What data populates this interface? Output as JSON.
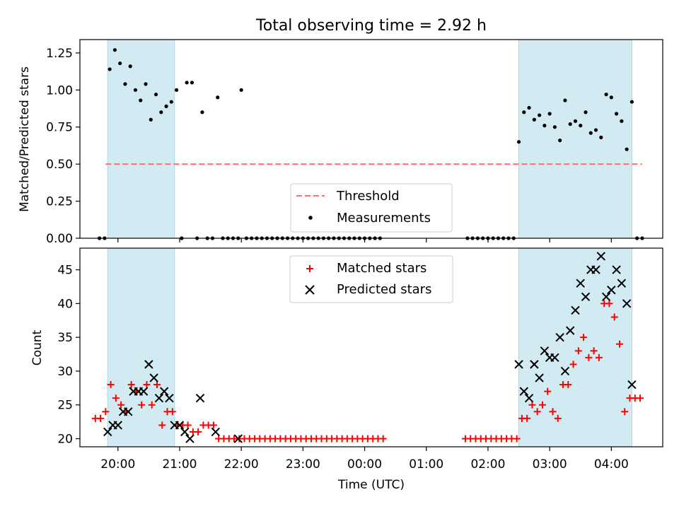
{
  "figure_title": "Total observing time = 2.92 h",
  "colors": {
    "shade": "#add8e6",
    "threshold": "#ff7070",
    "matched": "#ff0000",
    "predicted": "#000000",
    "measurement": "#000000"
  },
  "chart_data": [
    {
      "type": "scatter",
      "title": "",
      "xlabel": "",
      "ylabel": "Matched/Predicted stars",
      "xlim": [
        "19:23",
        "04:50"
      ],
      "ylim": [
        0,
        1.34
      ],
      "yticks": [
        "0.00",
        "0.25",
        "0.50",
        "0.75",
        "1.00",
        "1.25"
      ],
      "grid": false,
      "legend_position": "lower-center",
      "shaded_intervals": [
        [
          "19:50",
          "20:55"
        ],
        [
          "02:30",
          "04:20"
        ]
      ],
      "threshold": {
        "name": "Threshold",
        "value": 0.5,
        "x_range": [
          "19:48",
          "04:30"
        ],
        "style": "dashed"
      },
      "series": [
        {
          "name": "Measurements",
          "marker": "dot",
          "points": [
            [
              "19:42",
              0
            ],
            [
              "19:47",
              0
            ],
            [
              "19:52",
              1.14
            ],
            [
              "19:57",
              1.27
            ],
            [
              "20:02",
              1.18
            ],
            [
              "20:07",
              1.04
            ],
            [
              "20:12",
              1.16
            ],
            [
              "20:17",
              1.0
            ],
            [
              "20:22",
              0.93
            ],
            [
              "20:27",
              1.04
            ],
            [
              "20:32",
              0.8
            ],
            [
              "20:37",
              0.97
            ],
            [
              "20:42",
              0.85
            ],
            [
              "20:47",
              0.89
            ],
            [
              "20:52",
              0.92
            ],
            [
              "20:57",
              1.0
            ],
            [
              "21:02",
              0
            ],
            [
              "21:07",
              1.05
            ],
            [
              "21:12",
              1.05
            ],
            [
              "21:17",
              0
            ],
            [
              "21:22",
              0.85
            ],
            [
              "21:27",
              0
            ],
            [
              "21:32",
              0
            ],
            [
              "21:37",
              0.95
            ],
            [
              "21:42",
              0
            ],
            [
              "21:47",
              0
            ],
            [
              "21:52",
              0
            ],
            [
              "21:57",
              0
            ],
            [
              "22:00",
              1.0
            ],
            [
              "22:05",
              0
            ],
            [
              "22:10",
              0
            ],
            [
              "22:15",
              0
            ],
            [
              "22:20",
              0
            ],
            [
              "22:25",
              0
            ],
            [
              "22:30",
              0
            ],
            [
              "22:35",
              0
            ],
            [
              "22:40",
              0
            ],
            [
              "22:45",
              0
            ],
            [
              "22:50",
              0
            ],
            [
              "22:55",
              0
            ],
            [
              "23:00",
              0
            ],
            [
              "23:05",
              0
            ],
            [
              "23:10",
              0
            ],
            [
              "23:15",
              0
            ],
            [
              "23:20",
              0
            ],
            [
              "23:25",
              0
            ],
            [
              "23:30",
              0
            ],
            [
              "23:35",
              0
            ],
            [
              "23:40",
              0
            ],
            [
              "23:45",
              0
            ],
            [
              "23:50",
              0
            ],
            [
              "23:55",
              0
            ],
            [
              "00:00",
              0
            ],
            [
              "00:05",
              0
            ],
            [
              "00:10",
              0
            ],
            [
              "00:15",
              0
            ],
            [
              "01:40",
              0
            ],
            [
              "01:45",
              0
            ],
            [
              "01:50",
              0
            ],
            [
              "01:55",
              0
            ],
            [
              "02:00",
              0
            ],
            [
              "02:05",
              0
            ],
            [
              "02:10",
              0
            ],
            [
              "02:15",
              0
            ],
            [
              "02:20",
              0
            ],
            [
              "02:25",
              0
            ],
            [
              "02:30",
              0.65
            ],
            [
              "02:35",
              0.85
            ],
            [
              "02:40",
              0.88
            ],
            [
              "02:45",
              0.8
            ],
            [
              "02:50",
              0.83
            ],
            [
              "02:55",
              0.76
            ],
            [
              "03:00",
              0.84
            ],
            [
              "03:05",
              0.75
            ],
            [
              "03:10",
              0.66
            ],
            [
              "03:15",
              0.93
            ],
            [
              "03:20",
              0.77
            ],
            [
              "03:25",
              0.79
            ],
            [
              "03:30",
              0.76
            ],
            [
              "03:35",
              0.85
            ],
            [
              "03:40",
              0.71
            ],
            [
              "03:45",
              0.73
            ],
            [
              "03:50",
              0.68
            ],
            [
              "03:55",
              0.97
            ],
            [
              "04:00",
              0.95
            ],
            [
              "04:05",
              0.84
            ],
            [
              "04:10",
              0.79
            ],
            [
              "04:15",
              0.6
            ],
            [
              "04:20",
              0.92
            ],
            [
              "04:25",
              0
            ],
            [
              "04:30",
              0
            ]
          ]
        }
      ]
    },
    {
      "type": "scatter",
      "title": "",
      "xlabel": "Time (UTC)",
      "ylabel": "Count",
      "xlim": [
        "19:23",
        "04:50"
      ],
      "ylim": [
        18.8,
        48.2
      ],
      "yticks": [
        20,
        25,
        30,
        35,
        40,
        45
      ],
      "xticks": [
        "20:00",
        "21:00",
        "22:00",
        "23:00",
        "00:00",
        "01:00",
        "02:00",
        "03:00",
        "04:00"
      ],
      "grid": false,
      "legend_position": "upper-center",
      "shaded_intervals": [
        [
          "19:50",
          "20:55"
        ],
        [
          "02:30",
          "04:20"
        ]
      ],
      "series": [
        {
          "name": "Matched stars",
          "marker": "plus",
          "points": [
            [
              "19:38",
              23
            ],
            [
              "19:43",
              23
            ],
            [
              "19:48",
              24
            ],
            [
              "19:53",
              28
            ],
            [
              "19:58",
              26
            ],
            [
              "20:03",
              25
            ],
            [
              "20:08",
              24
            ],
            [
              "20:13",
              28
            ],
            [
              "20:18",
              27
            ],
            [
              "20:23",
              25
            ],
            [
              "20:28",
              28
            ],
            [
              "20:33",
              25
            ],
            [
              "20:38",
              28
            ],
            [
              "20:43",
              22
            ],
            [
              "20:48",
              24
            ],
            [
              "20:53",
              24
            ],
            [
              "20:58",
              22
            ],
            [
              "21:03",
              22
            ],
            [
              "21:08",
              22
            ],
            [
              "21:13",
              21
            ],
            [
              "21:18",
              21
            ],
            [
              "21:23",
              22
            ],
            [
              "21:28",
              22
            ],
            [
              "21:33",
              22
            ],
            [
              "21:38",
              20
            ],
            [
              "21:43",
              20
            ],
            [
              "21:48",
              20
            ],
            [
              "21:53",
              20
            ],
            [
              "21:58",
              20
            ],
            [
              "22:03",
              20
            ],
            [
              "22:08",
              20
            ],
            [
              "22:13",
              20
            ],
            [
              "22:18",
              20
            ],
            [
              "22:23",
              20
            ],
            [
              "22:28",
              20
            ],
            [
              "22:33",
              20
            ],
            [
              "22:38",
              20
            ],
            [
              "22:43",
              20
            ],
            [
              "22:48",
              20
            ],
            [
              "22:53",
              20
            ],
            [
              "22:58",
              20
            ],
            [
              "23:03",
              20
            ],
            [
              "23:08",
              20
            ],
            [
              "23:13",
              20
            ],
            [
              "23:18",
              20
            ],
            [
              "23:23",
              20
            ],
            [
              "23:28",
              20
            ],
            [
              "23:33",
              20
            ],
            [
              "23:38",
              20
            ],
            [
              "23:43",
              20
            ],
            [
              "23:48",
              20
            ],
            [
              "23:53",
              20
            ],
            [
              "23:58",
              20
            ],
            [
              "00:03",
              20
            ],
            [
              "00:08",
              20
            ],
            [
              "00:13",
              20
            ],
            [
              "00:18",
              20
            ],
            [
              "01:38",
              20
            ],
            [
              "01:43",
              20
            ],
            [
              "01:48",
              20
            ],
            [
              "01:53",
              20
            ],
            [
              "01:58",
              20
            ],
            [
              "02:03",
              20
            ],
            [
              "02:08",
              20
            ],
            [
              "02:13",
              20
            ],
            [
              "02:18",
              20
            ],
            [
              "02:23",
              20
            ],
            [
              "02:28",
              20
            ],
            [
              "02:33",
              23
            ],
            [
              "02:38",
              23
            ],
            [
              "02:43",
              25
            ],
            [
              "02:48",
              24
            ],
            [
              "02:53",
              25
            ],
            [
              "02:58",
              27
            ],
            [
              "03:03",
              24
            ],
            [
              "03:08",
              23
            ],
            [
              "03:13",
              28
            ],
            [
              "03:18",
              28
            ],
            [
              "03:23",
              31
            ],
            [
              "03:28",
              33
            ],
            [
              "03:33",
              35
            ],
            [
              "03:38",
              32
            ],
            [
              "03:43",
              33
            ],
            [
              "03:48",
              32
            ],
            [
              "03:53",
              40
            ],
            [
              "03:58",
              40
            ],
            [
              "04:03",
              38
            ],
            [
              "04:08",
              34
            ],
            [
              "04:13",
              24
            ],
            [
              "04:18",
              26
            ],
            [
              "04:23",
              26
            ],
            [
              "04:28",
              26
            ]
          ]
        },
        {
          "name": "Predicted stars",
          "marker": "x",
          "points": [
            [
              "19:50",
              21
            ],
            [
              "19:55",
              22
            ],
            [
              "20:00",
              22
            ],
            [
              "20:05",
              24
            ],
            [
              "20:10",
              24
            ],
            [
              "20:15",
              27
            ],
            [
              "20:20",
              27
            ],
            [
              "20:25",
              27
            ],
            [
              "20:30",
              31
            ],
            [
              "20:35",
              29
            ],
            [
              "20:40",
              26
            ],
            [
              "20:45",
              27
            ],
            [
              "20:50",
              26
            ],
            [
              "20:55",
              22
            ],
            [
              "21:00",
              22
            ],
            [
              "21:05",
              21
            ],
            [
              "21:10",
              20
            ],
            [
              "21:20",
              26
            ],
            [
              "21:35",
              21
            ],
            [
              "21:57",
              20
            ],
            [
              "02:30",
              31
            ],
            [
              "02:35",
              27
            ],
            [
              "02:40",
              26
            ],
            [
              "02:45",
              31
            ],
            [
              "02:50",
              29
            ],
            [
              "02:55",
              33
            ],
            [
              "03:00",
              32
            ],
            [
              "03:05",
              32
            ],
            [
              "03:10",
              35
            ],
            [
              "03:15",
              30
            ],
            [
              "03:20",
              36
            ],
            [
              "03:25",
              39
            ],
            [
              "03:30",
              43
            ],
            [
              "03:35",
              41
            ],
            [
              "03:40",
              45
            ],
            [
              "03:45",
              45
            ],
            [
              "03:50",
              47
            ],
            [
              "03:55",
              41
            ],
            [
              "04:00",
              42
            ],
            [
              "04:05",
              45
            ],
            [
              "04:10",
              43
            ],
            [
              "04:15",
              40
            ],
            [
              "04:20",
              28
            ]
          ]
        }
      ]
    }
  ]
}
